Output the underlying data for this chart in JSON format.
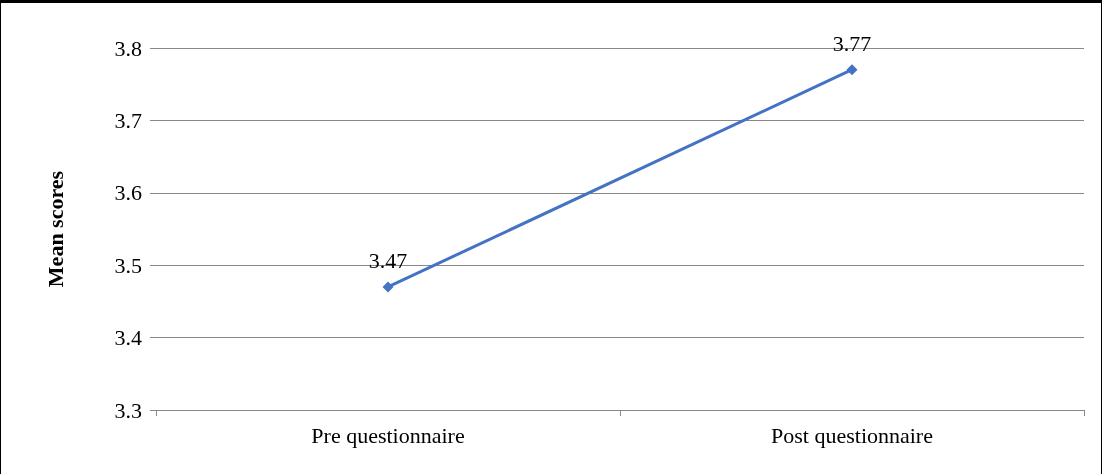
{
  "chart_data": {
    "type": "line",
    "ylabel": "Mean scores",
    "categories": [
      "Pre questionnaire",
      "Post questionnaire"
    ],
    "series": [
      {
        "color": "#4472c4",
        "values": [
          3.47,
          3.77
        ]
      }
    ],
    "ylim": [
      3.3,
      3.8
    ],
    "yticks": [
      3.3,
      3.4,
      3.5,
      3.6,
      3.7,
      3.8
    ],
    "grid": "y",
    "marker": "diamond",
    "line_style": "solid",
    "data_labels": true
  }
}
